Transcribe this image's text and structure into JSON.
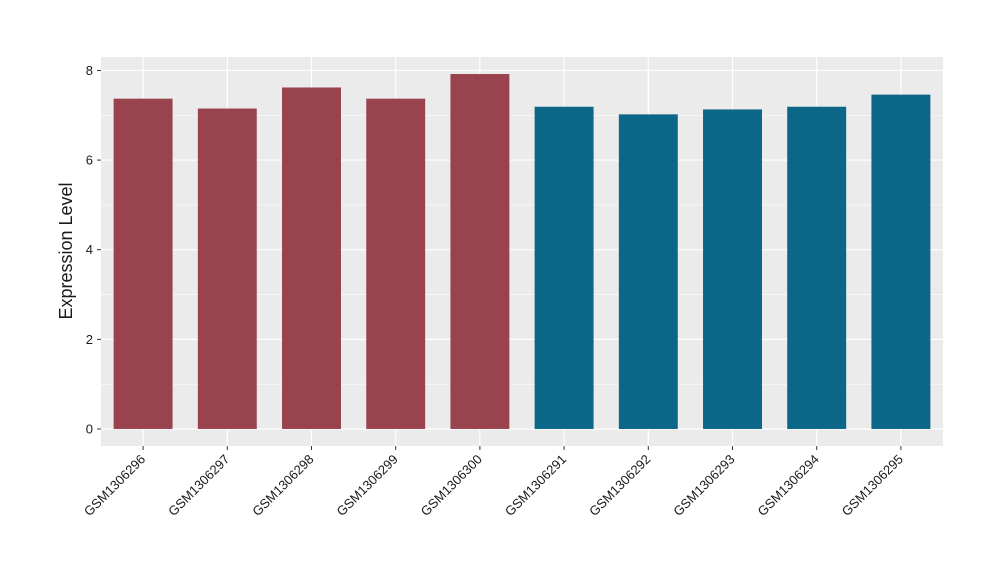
{
  "chart_data": {
    "type": "bar",
    "title": "",
    "xlabel": "",
    "ylabel": "Expression Level",
    "categories": [
      "GSM1306296",
      "GSM1306297",
      "GSM1306298",
      "GSM1306299",
      "GSM1306300",
      "GSM1306291",
      "GSM1306292",
      "GSM1306293",
      "GSM1306294",
      "GSM1306295"
    ],
    "values": [
      7.37,
      7.15,
      7.62,
      7.37,
      7.92,
      7.19,
      7.02,
      7.13,
      7.19,
      7.46
    ],
    "bar_colors": [
      "#99434f",
      "#99434f",
      "#99434f",
      "#99434f",
      "#99434f",
      "#0c6688",
      "#0c6688",
      "#0c6688",
      "#0c6688",
      "#0c6688"
    ],
    "ylim": [
      -0.38,
      8.3
    ],
    "yticks": [
      0,
      2,
      4,
      6,
      8
    ],
    "grid": true,
    "panel_background": "#ebebeb",
    "gridline_color": "#ffffff"
  }
}
